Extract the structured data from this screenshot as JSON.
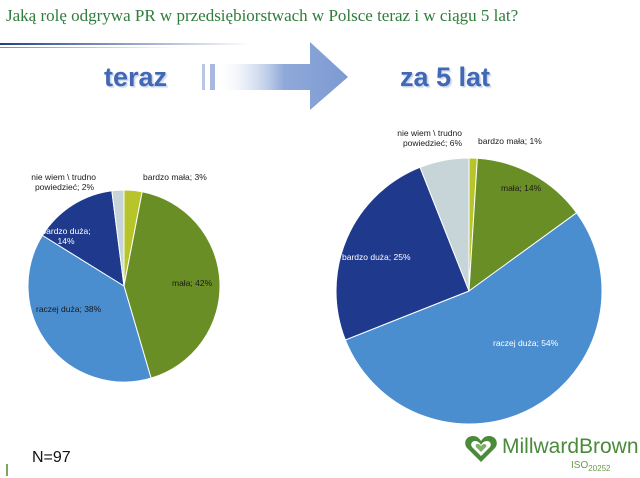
{
  "title": "Jaką rolę odgrywa PR w przedsiębiorstwach w Polsce teraz i w ciągu 5 lat?",
  "headings": {
    "now": "teraz",
    "later": "za 5 lat"
  },
  "note": "N=97",
  "logo": {
    "name": "MillwardBrown",
    "iso_prefix": "ISO",
    "iso_number": "20252"
  },
  "colors": {
    "bardzo_duza": "#1f3a8c",
    "raczej_duza": "#4a8ed0",
    "mala": "#6a8e26",
    "bardzo_mala": "#b7c42a",
    "nie_wiem": "#c7d5d9",
    "accent_title": "#2e7d3a",
    "heading": "#4168b4"
  },
  "chart_data": [
    {
      "type": "pie",
      "title": "teraz",
      "slices": [
        {
          "label": "bardzo mała",
          "value": 3
        },
        {
          "label": "mała",
          "value": 42
        },
        {
          "label": "raczej duża",
          "value": 38
        },
        {
          "label": "bardzo duża",
          "value": 14
        },
        {
          "label": "nie wiem \\ trudno powiedzieć",
          "value": 2
        }
      ],
      "data_labels": {
        "bardzo_mala": "bardzo mała; 3%",
        "mala": "mała; 42%",
        "raczej_duza": "raczej duża; 38%",
        "bardzo_duza": [
          "bardzo duża;",
          "14%"
        ],
        "nie_wiem": [
          "nie wiem \\ trudno",
          "powiedzieć; 2%"
        ]
      }
    },
    {
      "type": "pie",
      "title": "za 5 lat",
      "slices": [
        {
          "label": "bardzo mała",
          "value": 1
        },
        {
          "label": "mała",
          "value": 14
        },
        {
          "label": "raczej duża",
          "value": 54
        },
        {
          "label": "bardzo duża",
          "value": 25
        },
        {
          "label": "nie wiem \\ trudno powiedzieć",
          "value": 6
        }
      ],
      "data_labels": {
        "bardzo_mala": "bardzo mała; 1%",
        "mala": "mała; 14%",
        "raczej_duza": "raczej duża; 54%",
        "bardzo_duza": "bardzo duża; 25%",
        "nie_wiem": [
          "nie wiem \\ trudno",
          "powiedzieć; 6%"
        ]
      }
    }
  ]
}
